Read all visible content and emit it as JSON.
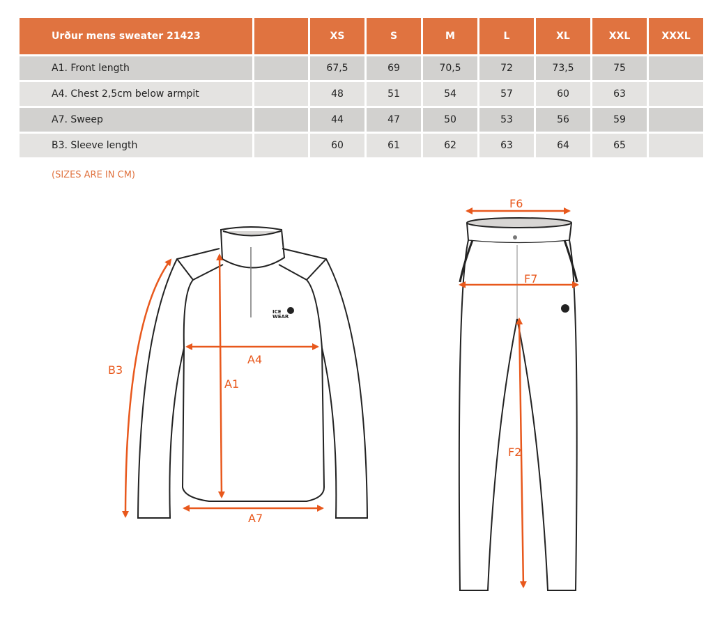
{
  "table": {
    "title": "Urður mens sweater 21423",
    "sizes": [
      "XS",
      "S",
      "M",
      "L",
      "XL",
      "XXL",
      "XXXL"
    ],
    "rows": [
      {
        "label": "A1. Front length",
        "values": [
          "67,5",
          "69",
          "70,5",
          "72",
          "73,5",
          "75",
          ""
        ]
      },
      {
        "label": "A4. Chest 2,5cm below armpit",
        "values": [
          "48",
          "51",
          "54",
          "57",
          "60",
          "63",
          ""
        ]
      },
      {
        "label": "A7. Sweep",
        "values": [
          "44",
          "47",
          "50",
          "53",
          "56",
          "59",
          ""
        ]
      },
      {
        "label": "B3. Sleeve length",
        "values": [
          "60",
          "61",
          "62",
          "63",
          "64",
          "65",
          ""
        ]
      }
    ]
  },
  "note": "(SIZES ARE IN CM)",
  "diagram": {
    "sweater_labels": {
      "a1": "A1",
      "a4": "A4",
      "a7": "A7",
      "b3": "B3"
    },
    "pants_labels": {
      "f6": "F6",
      "f7": "F7",
      "f2": "F2"
    },
    "logo_text": "ICE WEAR",
    "accent_color": "#e8581c",
    "header_color": "#e07340"
  }
}
